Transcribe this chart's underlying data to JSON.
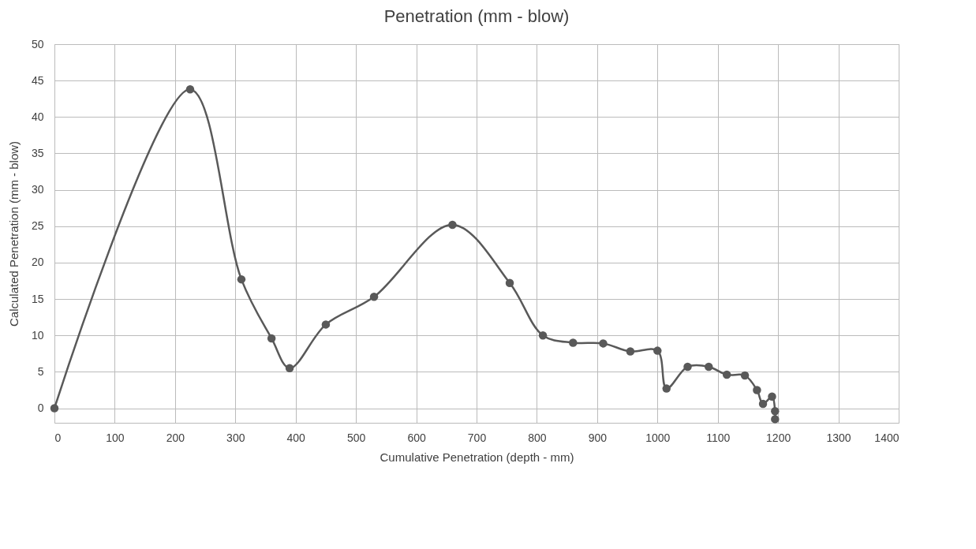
{
  "chart_data": {
    "type": "line",
    "title": "Penetration (mm - blow)",
    "xlabel": "Cumulative Penetration (depth - mm)",
    "ylabel": "Calculated Penetration (mm - blow)",
    "x": [
      0,
      225,
      310,
      360,
      390,
      450,
      530,
      660,
      755,
      810,
      860,
      910,
      955,
      1000,
      1015,
      1050,
      1085,
      1115,
      1145,
      1165,
      1175,
      1190,
      1195,
      1195
    ],
    "series": [
      {
        "color": "#595959",
        "values": [
          0,
          43.8,
          17.7,
          9.6,
          5.5,
          11.5,
          15.3,
          25.2,
          17.2,
          10,
          9,
          8.9,
          7.8,
          7.9,
          2.7,
          5.7,
          5.7,
          4.6,
          4.5,
          2.5,
          0.6,
          1.6,
          -0.4,
          -1.5
        ]
      }
    ],
    "xlim": [
      0,
      1400
    ],
    "xticks": [
      0,
      100,
      200,
      300,
      400,
      500,
      600,
      700,
      800,
      900,
      1000,
      1100,
      1200,
      1300,
      1400
    ],
    "ylim": [
      -2,
      50
    ],
    "yticks": [
      0,
      5,
      10,
      15,
      20,
      25,
      30,
      35,
      40,
      45,
      50
    ],
    "grid": true,
    "marker": "circle",
    "line_style": "solid",
    "legend": false
  }
}
